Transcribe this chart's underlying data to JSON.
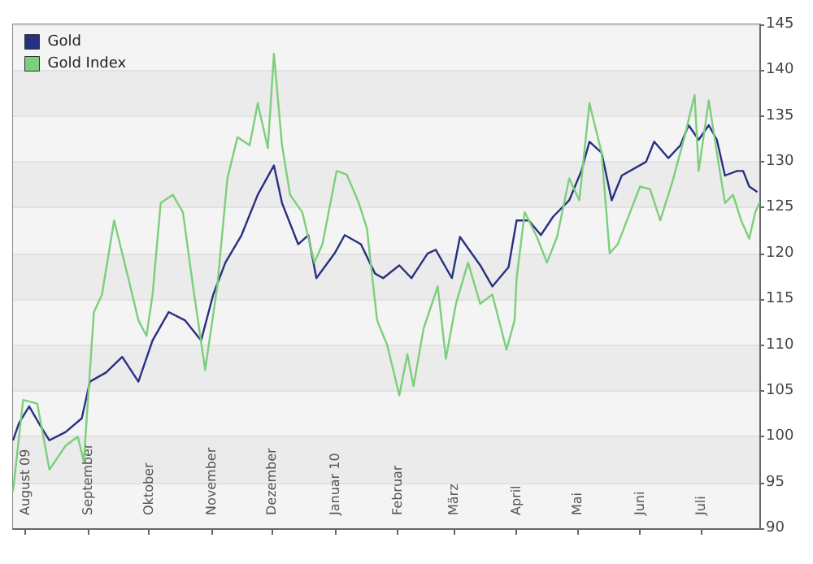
{
  "chart_data": {
    "type": "line",
    "legend": "top left",
    "grid": "y",
    "ylim": [
      90,
      145
    ],
    "yticks": [
      90,
      95,
      100,
      105,
      110,
      115,
      120,
      125,
      130,
      135,
      140,
      145
    ],
    "xlim": [
      "2009-07-26",
      "2010-07-30"
    ],
    "xticks": [
      {
        "value": "2009-08-01",
        "label": "August 09"
      },
      {
        "value": "2009-09-01",
        "label": "September"
      },
      {
        "value": "2009-10-01",
        "label": "Oktober"
      },
      {
        "value": "2009-11-01",
        "label": "November"
      },
      {
        "value": "2009-12-01",
        "label": "Dezember"
      },
      {
        "value": "2010-01-01",
        "label": "Januar 10"
      },
      {
        "value": "2010-02-01",
        "label": "Februar"
      },
      {
        "value": "2010-03-01",
        "label": "März"
      },
      {
        "value": "2010-04-01",
        "label": "April"
      },
      {
        "value": "2010-05-01",
        "label": "Mai"
      },
      {
        "value": "2010-06-01",
        "label": "Juni"
      },
      {
        "value": "2010-07-01",
        "label": "Juli"
      }
    ],
    "series": [
      {
        "name": "Gold",
        "color": "#283080",
        "x": [
          "2009-07-26",
          "2009-07-29",
          "2009-08-03",
          "2009-08-09",
          "2009-08-13",
          "2009-08-21",
          "2009-08-29",
          "2009-09-02",
          "2009-09-10",
          "2009-09-18",
          "2009-09-26",
          "2009-10-03",
          "2009-10-11",
          "2009-10-19",
          "2009-10-27",
          "2009-11-02",
          "2009-11-08",
          "2009-11-16",
          "2009-11-24",
          "2009-12-02",
          "2009-12-06",
          "2009-12-14",
          "2009-12-19",
          "2009-12-23",
          "2010-01-01",
          "2010-01-06",
          "2010-01-14",
          "2010-01-21",
          "2010-01-25",
          "2010-02-02",
          "2010-02-08",
          "2010-02-16",
          "2010-02-20",
          "2010-02-28",
          "2010-03-04",
          "2010-03-14",
          "2010-03-20",
          "2010-03-28",
          "2010-04-01",
          "2010-04-07",
          "2010-04-13",
          "2010-04-19",
          "2010-04-27",
          "2010-05-03",
          "2010-05-07",
          "2010-05-13",
          "2010-05-18",
          "2010-05-23",
          "2010-06-04",
          "2010-06-08",
          "2010-06-15",
          "2010-06-21",
          "2010-06-25",
          "2010-06-30",
          "2010-07-05",
          "2010-07-09",
          "2010-07-13",
          "2010-07-19",
          "2010-07-22",
          "2010-07-25",
          "2010-07-29"
        ],
        "values": [
          99.6,
          101.5,
          103.3,
          101,
          99.6,
          100.5,
          102,
          106,
          107,
          108.7,
          106,
          110.5,
          113.6,
          112.7,
          110.5,
          115.5,
          119,
          122,
          126.4,
          129.6,
          125.5,
          121,
          122,
          117.3,
          120,
          122,
          121,
          117.8,
          117.3,
          118.7,
          117.3,
          120,
          120.4,
          117.3,
          121.8,
          118.7,
          116.4,
          118.5,
          123.6,
          123.6,
          122,
          124,
          125.8,
          129,
          132.2,
          131,
          125.8,
          128.5,
          130,
          132.2,
          130.4,
          131.8,
          134,
          132.4,
          134,
          132.4,
          128.5,
          129,
          129,
          127.3,
          126.7
        ]
      },
      {
        "name": "Gold Index",
        "color": "#7ccf7c",
        "x": [
          "2009-07-26",
          "2009-07-31",
          "2009-08-07",
          "2009-08-13",
          "2009-08-21",
          "2009-08-27",
          "2009-08-30",
          "2009-09-04",
          "2009-09-08",
          "2009-09-14",
          "2009-09-21",
          "2009-09-26",
          "2009-09-30",
          "2009-10-03",
          "2009-10-07",
          "2009-10-13",
          "2009-10-18",
          "2009-10-23",
          "2009-10-29",
          "2009-11-04",
          "2009-11-09",
          "2009-11-14",
          "2009-11-20",
          "2009-11-24",
          "2009-11-29",
          "2009-12-02",
          "2009-12-06",
          "2009-12-10",
          "2009-12-16",
          "2009-12-22",
          "2009-12-26",
          "2010-01-02",
          "2010-01-07",
          "2010-01-13",
          "2010-01-17",
          "2010-01-22",
          "2010-01-27",
          "2010-02-02",
          "2010-02-06",
          "2010-02-09",
          "2010-02-14",
          "2010-02-21",
          "2010-02-25",
          "2010-03-02",
          "2010-03-08",
          "2010-03-14",
          "2010-03-20",
          "2010-03-27",
          "2010-03-31",
          "2010-04-01",
          "2010-04-05",
          "2010-04-11",
          "2010-04-16",
          "2010-04-21",
          "2010-04-27",
          "2010-05-02",
          "2010-05-07",
          "2010-05-13",
          "2010-05-17",
          "2010-05-21",
          "2010-06-01",
          "2010-06-06",
          "2010-06-11",
          "2010-06-17",
          "2010-06-23",
          "2010-06-28",
          "2010-06-30",
          "2010-07-05",
          "2010-07-09",
          "2010-07-13",
          "2010-07-17",
          "2010-07-21",
          "2010-07-25",
          "2010-07-28",
          "2010-07-30"
        ],
        "values": [
          94,
          104,
          103.6,
          96.4,
          99,
          100,
          97.3,
          113.6,
          115.5,
          123.6,
          117.3,
          112.7,
          111,
          115.5,
          125.5,
          126.4,
          124.5,
          116.4,
          107.3,
          116.4,
          128.2,
          132.7,
          131.8,
          136.4,
          131.5,
          141.8,
          131.8,
          126.4,
          124.5,
          119,
          121,
          129,
          128.6,
          125.5,
          122.7,
          112.7,
          110,
          104.5,
          109,
          105.5,
          111.8,
          116.4,
          108.5,
          114.5,
          119,
          114.5,
          115.5,
          109.5,
          112.7,
          117.3,
          124.5,
          121.8,
          119,
          121.8,
          128.2,
          125.8,
          136.4,
          131,
          120,
          121,
          127.3,
          127,
          123.6,
          127.8,
          132.7,
          137.3,
          129,
          136.7,
          131,
          125.5,
          126.4,
          123.6,
          121.6,
          124.5,
          125.5
        ]
      }
    ]
  }
}
